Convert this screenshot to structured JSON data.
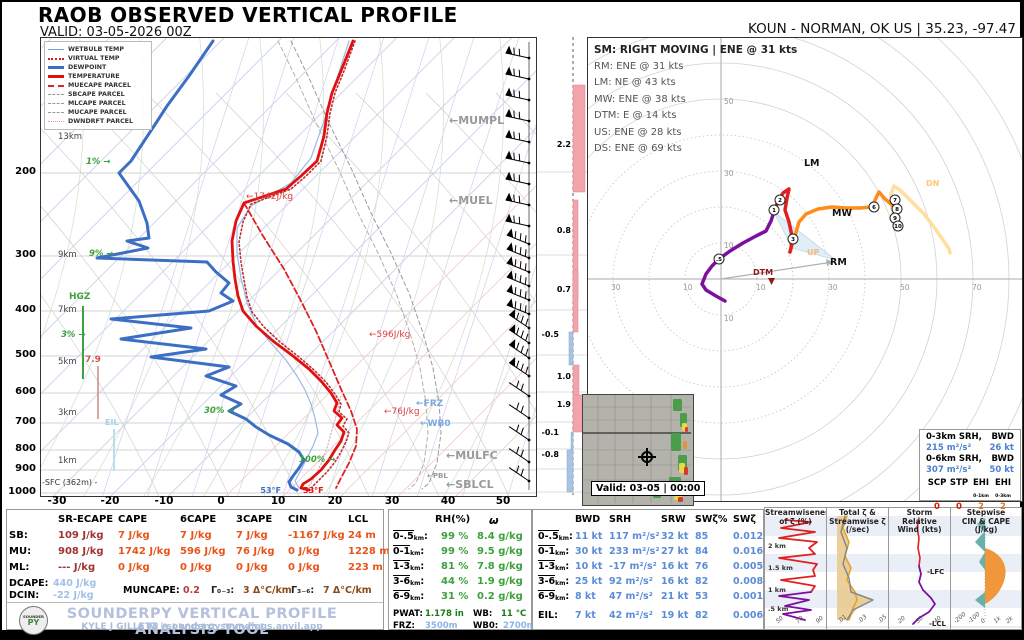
{
  "header": {
    "title": "RAOB OBSERVED VERTICAL PROFILE",
    "valid": "VALID: 03-05-2026 00Z",
    "station": "KOUN - NORMAN, OK US | 35.23, -97.47"
  },
  "legend": [
    "WETBULB TEMP",
    "VIRTUAL TEMP",
    "DEWPOINT",
    "TEMPERATURE",
    "MUECAPE PARCEL",
    "SBCAPE PARCEL",
    "MLCAPE PARCEL",
    "MUCAPE PARCEL",
    "DWNDRFT PARCEL"
  ],
  "skewt": {
    "pressure_ticks": [
      "200",
      "300",
      "400",
      "500",
      "600",
      "700",
      "800",
      "900",
      "1000"
    ],
    "height_labels": [
      "13km",
      "9km",
      "7km",
      "5km",
      "3km",
      "1km"
    ],
    "sfc_label": "-SFC (362m) -",
    "x_ticks": [
      "-30",
      "-20",
      "-10",
      "0",
      "10",
      "20",
      "30",
      "40",
      "50"
    ],
    "green_annotations": [
      "1% →",
      "9% →",
      "3% →",
      "30% →",
      "100% →"
    ],
    "hgz_label": "HGZ",
    "lapse_label": "7.9",
    "eil_label": "EIL",
    "energy_labels": [
      "←1742J/kg",
      "←596J/kg",
      "←76J/kg"
    ],
    "level_labels": [
      "←MUMPL",
      "←MUEL",
      "←FRZ",
      "←WB0",
      "←MULFC",
      "←PBL",
      "←SBLCL"
    ],
    "surface_dewpoint": "53°F",
    "surface_temperature": "53°F"
  },
  "omega": {
    "values": [
      "2.2",
      "0.8",
      "0.7",
      "-0.5",
      "1.0",
      "1.9",
      "-0.1",
      "-0.8"
    ]
  },
  "hodograph": {
    "sm_main": "SM: RIGHT MOVING | ENE @ 31 kts",
    "motions": [
      "RM: ENE @ 31 kts",
      "LM: NE @ 43 kts",
      "MW: ENE @ 38 kts",
      "DTM: E @ 14 kts",
      "US: ENE @ 28 kts",
      "DS: ENE @ 69 kts"
    ],
    "ring_labels": [
      "10",
      "30",
      "50",
      "70"
    ],
    "vector_labels": {
      "lm": "LM",
      "rm": "RM",
      "mw": "MW",
      "dtm": "DTM",
      "up": "UP",
      "dn": "DN"
    },
    "height_markers": [
      ".5",
      "1",
      "2",
      "3",
      "6",
      "7",
      "8",
      "9",
      "10"
    ],
    "radar_valid": "Valid: 03-05 | 00:00",
    "srh_box": {
      "r1l": "0-3km SRH,",
      "r1r": "BWD",
      "r1lv": "215 m²/s²",
      "r1rv": "26 kt",
      "r2l": "0-6km SRH,",
      "r2r": "BWD",
      "r2lv": "307 m²/s²",
      "r2rv": "50 kt",
      "heads": [
        "SCP",
        "STP",
        "EHI",
        "EHI"
      ],
      "subs": [
        "",
        "",
        "0-1km",
        "0-3km"
      ],
      "vals": [
        "0",
        "0",
        "2",
        "2"
      ]
    }
  },
  "thermo": {
    "headers": [
      "SR-ECAPE",
      "CAPE",
      "6CAPE",
      "3CAPE",
      "CIN",
      "LCL"
    ],
    "rows": [
      {
        "label": "SB:",
        "values": [
          "109 J/kg",
          "7 J/kg",
          "7 J/kg",
          "7 J/kg",
          "-1167 J/kg",
          "24 m"
        ]
      },
      {
        "label": "MU:",
        "values": [
          "908 J/kg",
          "1742 J/kg",
          "596 J/kg",
          "76 J/kg",
          "0 J/kg",
          "1228 m"
        ]
      },
      {
        "label": "ML:",
        "values": [
          "--- J/kg",
          "0 J/kg",
          "0 J/kg",
          "0 J/kg",
          "0 J/kg",
          "223 m"
        ]
      }
    ],
    "dcape_label": "DCAPE:",
    "dcape": "440 J/kg",
    "dcin_label": "DCIN:",
    "dcin": "-22 J/kg",
    "muncape_label": "MUNCAPE:",
    "muncape": "0.2",
    "lr03_label": "Γ₀₋₃:",
    "lr03": "3 Δ°C/km",
    "lr36_label": "Γ₃₋₆:",
    "lr36": "7 Δ°C/km"
  },
  "rh_table": {
    "col1": "RH(%)",
    "col2": "ω",
    "rows": [
      {
        "layer": "0-.5",
        "rh": "99 %",
        "w": "8.4 g/kg"
      },
      {
        "layer": "0-1",
        "rh": "99 %",
        "w": "9.5 g/kg"
      },
      {
        "layer": "1-3",
        "rh": "81 %",
        "w": "7.8 g/kg"
      },
      {
        "layer": "3-6",
        "rh": "44 %",
        "w": "1.9 g/kg"
      },
      {
        "layer": "6-9",
        "rh": "31 %",
        "w": "0.2 g/kg"
      }
    ],
    "pwat_label": "PWAT:",
    "pwat": "1.178 in",
    "wb_label": "WB:",
    "wb": "11 °C",
    "frz_label": "FRZ:",
    "frz": "3500m",
    "wb0_label": "WB0:",
    "wb0": "2700m"
  },
  "kinematics": {
    "headers": [
      "BWD",
      "SRH",
      "SRW",
      "SWζ%",
      "SWζ"
    ],
    "rows": [
      {
        "layer": "0-.5",
        "eil": false,
        "values": [
          "11 kt",
          "117 m²/s²",
          "32 kt",
          "85",
          "0.012"
        ]
      },
      {
        "layer": "0-1",
        "eil": false,
        "values": [
          "30 kt",
          "233 m²/s²",
          "27 kt",
          "84",
          "0.016"
        ]
      },
      {
        "layer": "1-3",
        "eil": false,
        "values": [
          "10 kt",
          "-17 m²/s²",
          "16 kt",
          "76",
          "0.005"
        ]
      },
      {
        "layer": "3-6",
        "eil": false,
        "values": [
          "25 kt",
          "92 m²/s²",
          "16 kt",
          "82",
          "0.008"
        ]
      },
      {
        "layer": "6-9",
        "eil": false,
        "values": [
          "8 kt",
          "47 m²/s²",
          "21 kt",
          "53",
          "0.001"
        ]
      },
      {
        "layer": "EIL:",
        "eil": true,
        "values": [
          "7 kt",
          "42 m²/s²",
          "19 kt",
          "82",
          "0.006"
        ]
      }
    ]
  },
  "panels": [
    {
      "title": "Streamwiseness\nof ζ (%)",
      "xticks": [
        "50",
        "70",
        "90"
      ],
      "ylabels": [
        "2 km",
        "1.5 km",
        "1 km",
        ".5 km"
      ],
      "annotations": []
    },
    {
      "title": "Total ζ &\nStreamwise ζ\n(/sec)",
      "xticks": [
        ".01",
        ".03",
        ".05"
      ],
      "ylabels": [],
      "annotations": []
    },
    {
      "title": "Storm Relative\nWind (kts)",
      "xticks": [
        "20",
        "30",
        "40"
      ],
      "ylabels": [],
      "annotations": [
        "-LFC",
        "-LCL"
      ]
    },
    {
      "title": "Stepwise\nCIN & CAPE\n(J/kg)",
      "xticks": [
        "-200",
        "-100",
        "0",
        "1k",
        "2k"
      ],
      "ylabels": [],
      "annotations": []
    }
  ],
  "footer": {
    "title": "SOUNDERPY VERTICAL PROFILE ANALYSIS TOOL",
    "credit": "KYLE J GILLETT | sounderpysoundings.anvil.app",
    "logo_top": "SOUNDER",
    "logo_bottom": "PY"
  },
  "chart_data": {
    "type": "composite",
    "charts": [
      {
        "type": "line",
        "name": "skew_t_log_p",
        "x_axis": {
          "label": "Temperature (°C)",
          "ticks": [
            -30,
            -20,
            -10,
            0,
            10,
            20,
            30,
            40,
            50
          ]
        },
        "y_axis": {
          "label": "Pressure (hPa)",
          "ticks": [
            200,
            300,
            400,
            500,
            600,
            700,
            800,
            900,
            1000
          ]
        },
        "surface": {
          "temperature_F": 53,
          "dewpoint_F": 53,
          "station_elevation_m": 362
        },
        "series": [
          "WETBULB TEMP",
          "VIRTUAL TEMP",
          "DEWPOINT",
          "TEMPERATURE",
          "MUECAPE PARCEL",
          "SBCAPE PARCEL",
          "MLCAPE PARCEL",
          "MUCAPE PARCEL",
          "DWNDRFT PARCEL"
        ],
        "annotations": {
          "cape_markers_J_kg": [
            1742,
            596,
            76
          ],
          "levels": [
            "MUMPL",
            "MUEL",
            "FRZ",
            "WB0",
            "MULFC",
            "PBL",
            "SBLCL"
          ],
          "hail_growth_zone": "HGZ",
          "lapse_rate_700_500": 7.9,
          "rh_markers_pct": [
            1,
            9,
            3,
            30,
            100
          ]
        }
      },
      {
        "type": "bar",
        "name": "omega_profile_Pa_s",
        "values": [
          2.2,
          0.8,
          0.7,
          -0.5,
          1.0,
          1.9,
          -0.1,
          -0.8
        ]
      },
      {
        "type": "line",
        "name": "hodograph",
        "rings_kt": [
          10,
          20,
          30,
          40,
          50,
          60,
          70,
          80
        ],
        "height_markers_km": [
          0.5,
          1,
          2,
          3,
          6,
          7,
          8,
          9,
          10
        ],
        "storm_motion_vectors": [
          {
            "id": "SM",
            "type": "RIGHT MOVING",
            "dir": "ENE",
            "speed_kt": 31
          },
          {
            "id": "RM",
            "dir": "ENE",
            "speed_kt": 31
          },
          {
            "id": "LM",
            "dir": "NE",
            "speed_kt": 43
          },
          {
            "id": "MW",
            "dir": "ENE",
            "speed_kt": 38
          },
          {
            "id": "DTM",
            "dir": "E",
            "speed_kt": 14
          },
          {
            "id": "US",
            "dir": "ENE",
            "speed_kt": 28
          },
          {
            "id": "DS",
            "dir": "ENE",
            "speed_kt": 69
          }
        ]
      },
      {
        "type": "table",
        "name": "thermodynamics",
        "rows": {
          "SB": {
            "SR_ECAPE_J_kg": 109,
            "CAPE_J_kg": 7,
            "CAPE6_J_kg": 7,
            "CAPE3_J_kg": 7,
            "CIN_J_kg": -1167,
            "LCL_m": 24
          },
          "MU": {
            "SR_ECAPE_J_kg": 908,
            "CAPE_J_kg": 1742,
            "CAPE6_J_kg": 596,
            "CAPE3_J_kg": 76,
            "CIN_J_kg": 0,
            "LCL_m": 1228
          },
          "ML": {
            "SR_ECAPE_J_kg": null,
            "CAPE_J_kg": 0,
            "CAPE6_J_kg": 0,
            "CAPE3_J_kg": 0,
            "CIN_J_kg": 0,
            "LCL_m": 223
          }
        },
        "DCAPE_J_kg": 440,
        "DCIN_J_kg": -22,
        "MUNCAPE": 0.2,
        "lapse_0_3_C_km": 3,
        "lapse_3_6_C_km": 7
      },
      {
        "type": "table",
        "name": "moisture",
        "rows": {
          "0-0.5km": {
            "RH_pct": 99,
            "w_g_kg": 8.4
          },
          "0-1km": {
            "RH_pct": 99,
            "w_g_kg": 9.5
          },
          "1-3km": {
            "RH_pct": 81,
            "w_g_kg": 7.8
          },
          "3-6km": {
            "RH_pct": 44,
            "w_g_kg": 1.9
          },
          "6-9km": {
            "RH_pct": 31,
            "w_g_kg": 0.2
          }
        },
        "PWAT_in": 1.178,
        "WB_C": 11,
        "FRZ_m": 3500,
        "WB0_m": 2700
      },
      {
        "type": "table",
        "name": "kinematics",
        "rows": {
          "0-0.5km": {
            "BWD_kt": 11,
            "SRH_m2_s2": 117,
            "SRW_kt": 32,
            "SWzeta_pct": 85,
            "SWzeta": 0.012
          },
          "0-1km": {
            "BWD_kt": 30,
            "SRH_m2_s2": 233,
            "SRW_kt": 27,
            "SWzeta_pct": 84,
            "SWzeta": 0.016
          },
          "1-3km": {
            "BWD_kt": 10,
            "SRH_m2_s2": -17,
            "SRW_kt": 16,
            "SWzeta_pct": 76,
            "SWzeta": 0.005
          },
          "3-6km": {
            "BWD_kt": 25,
            "SRH_m2_s2": 92,
            "SRW_kt": 16,
            "SWzeta_pct": 82,
            "SWzeta": 0.008
          },
          "6-9km": {
            "BWD_kt": 8,
            "SRH_m2_s2": 47,
            "SRW_kt": 21,
            "SWzeta_pct": 53,
            "SWzeta": 0.001
          },
          "EIL": {
            "BWD_kt": 7,
            "SRH_m2_s2": 42,
            "SRW_kt": 19,
            "SWzeta_pct": 82,
            "SWzeta": 0.006
          }
        }
      },
      {
        "type": "table",
        "name": "composite_indices",
        "SRH_0_3km_m2_s2": 215,
        "BWD_0_3km_kt": 26,
        "SRH_0_6km_m2_s2": 307,
        "BWD_0_6km_kt": 50,
        "SCP": 0,
        "STP": 0,
        "EHI_0_1km": 2,
        "EHI_0_3km": 2
      }
    ]
  }
}
